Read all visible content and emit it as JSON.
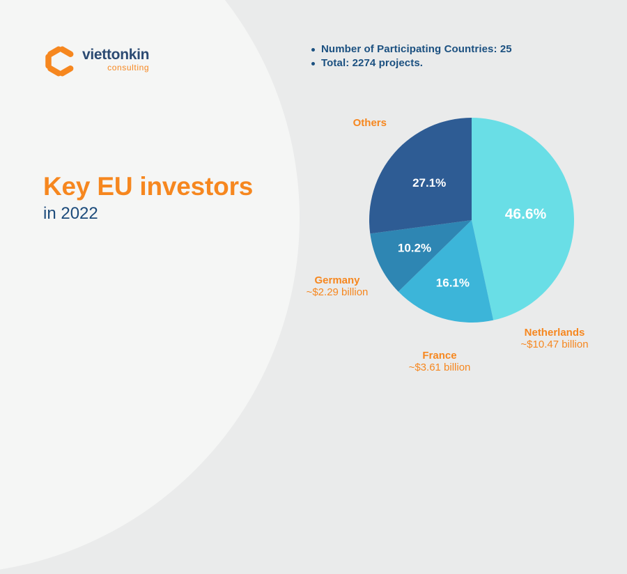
{
  "brand": {
    "name": "viettonkin",
    "tagline": "consulting",
    "icon": "hexagon-c-logo",
    "accent_color": "#F6871F",
    "navy_color": "#2B4A72"
  },
  "stats": {
    "items": [
      "Number of Participating Countries: 25",
      "Total: 2274 projects."
    ],
    "text_color": "#1B5080"
  },
  "title": {
    "main": "Key EU investors",
    "sub": "in 2022"
  },
  "chart_data": {
    "type": "pie",
    "title": "Key EU investors in 2022",
    "start_angle_deg": 0,
    "direction": "clockwise",
    "percent_label_color": "#FFFFFF",
    "slices": [
      {
        "label": "Netherlands",
        "value_pct": 46.6,
        "amount": "~$10.47 billion",
        "color": "#69DEE6",
        "pct_label_r": 0.53,
        "pct_label_size": 21
      },
      {
        "label": "France",
        "value_pct": 16.1,
        "amount": "~$3.61 billion",
        "color": "#3CB5D9",
        "pct_label_r": 0.64,
        "pct_label_size": 17
      },
      {
        "label": "Germany",
        "value_pct": 10.2,
        "amount": "~$2.29 billion",
        "color": "#2E86B3",
        "pct_label_r": 0.62,
        "pct_label_size": 17
      },
      {
        "label": "Others",
        "value_pct": 27.1,
        "amount": "",
        "color": "#2E5C94",
        "pct_label_r": 0.55,
        "pct_label_size": 17
      }
    ]
  }
}
